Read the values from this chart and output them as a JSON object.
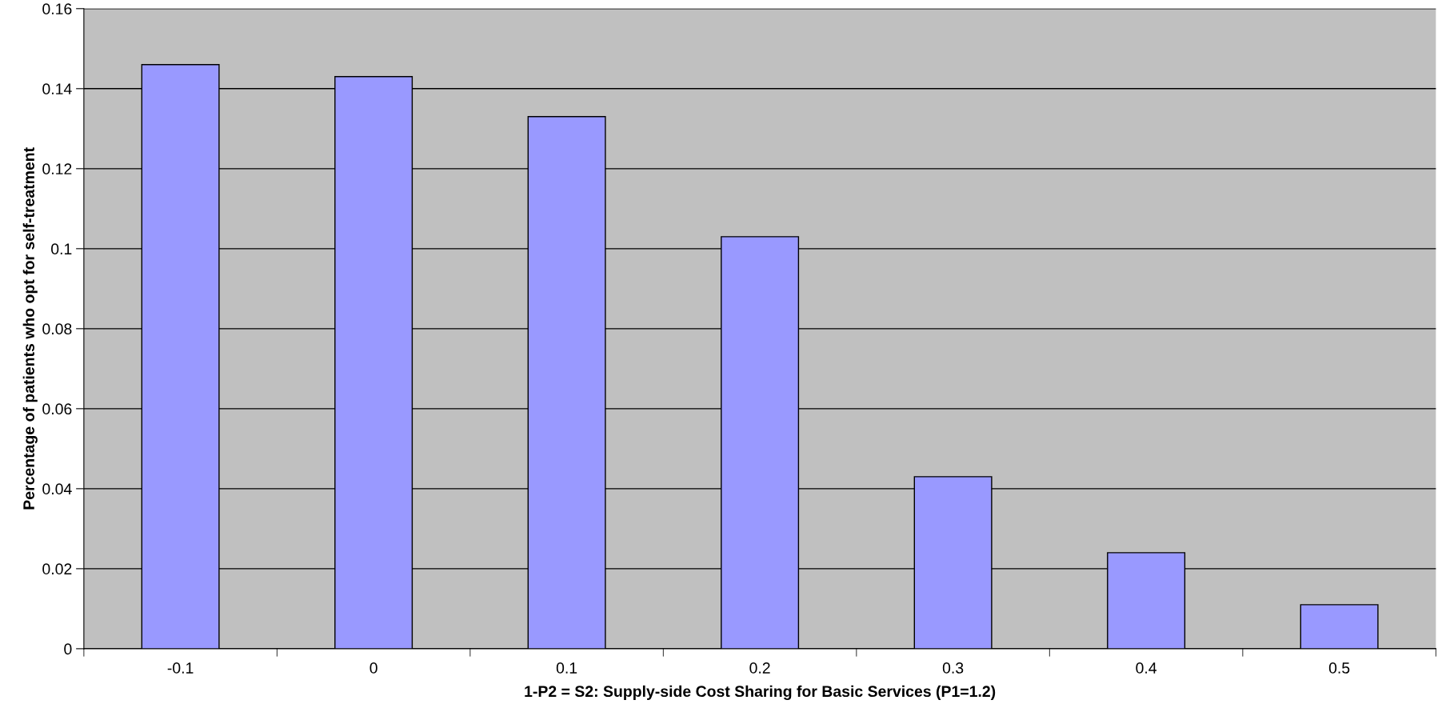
{
  "chart_data": {
    "type": "bar",
    "xlabel": "1-P2 = S2: Supply-side Cost Sharing for Basic Services (P1=1.2)",
    "ylabel": "Percentage of patients who opt for self-treatment",
    "categories": [
      "-0.1",
      "0",
      "0.1",
      "0.2",
      "0.3",
      "0.4",
      "0.5"
    ],
    "values": [
      0.146,
      0.143,
      0.133,
      0.103,
      0.043,
      0.024,
      0.011
    ],
    "color": "#9999ff",
    "ylim": [
      0,
      0.16
    ],
    "yticks": [
      0,
      0.02,
      0.04,
      0.06,
      0.08,
      0.1,
      0.12,
      0.14,
      0.16
    ],
    "grid": "y",
    "legend": false
  }
}
